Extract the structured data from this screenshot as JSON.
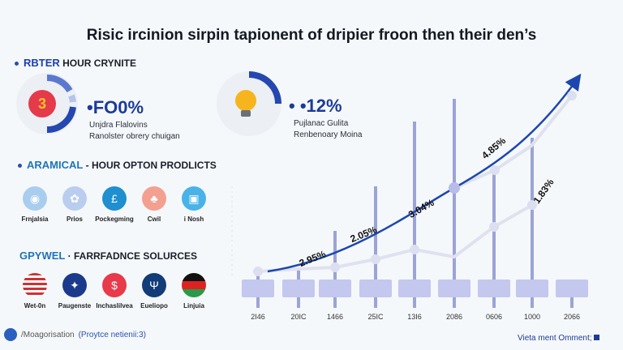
{
  "title": "Risic ircinion sirpin tapionent of dripier froon then their den’s",
  "section1": {
    "accent": "RBTER",
    "label": "HOUR CRYNITE"
  },
  "stat1": {
    "badge": "3",
    "value": "FO0%",
    "line1": "Unjdra Flalovins",
    "line2": "Ranolster obrery chuigan"
  },
  "stat2": {
    "value": "12%",
    "line1": "Pujlanac Gulita",
    "line2": "Renbenoary Moina"
  },
  "section2": {
    "accent": "ARAMICAL",
    "label": "HOUR OPTON PRODLICTS"
  },
  "products": [
    {
      "label": "Frnjalsia",
      "icon": "controller-icon",
      "color": "#a9cdef"
    },
    {
      "label": "Prios",
      "icon": "animal-icon",
      "color": "#b9cdef"
    },
    {
      "label": "Pockegming",
      "icon": "currency-icon",
      "color": "#1f8fd0"
    },
    {
      "label": "Cwil",
      "icon": "gift-icon",
      "color": "#f3a090"
    },
    {
      "label": "i Nosh",
      "icon": "device-icon",
      "color": "#49b3e8"
    }
  ],
  "section3": {
    "accent": "GPYWEL",
    "label": "FARRFADNCE SOLURCES"
  },
  "sources": [
    {
      "label": "Wet-0n",
      "icon": "us-flag-icon",
      "color": "#c33"
    },
    {
      "label": "Paugenste",
      "icon": "emblem-icon",
      "color": "#1c3a8c"
    },
    {
      "label": "Inchaslilvea",
      "icon": "coin-icon",
      "color": "#e83a4a"
    },
    {
      "label": "Eueliopo",
      "icon": "logo-icon",
      "color": "#123c78"
    },
    {
      "label": "Linjuia",
      "icon": "flag-icon",
      "color": "#d22"
    }
  ],
  "footer": {
    "text": "/Moagorisation",
    "link": "(Proytce netienii:3)",
    "right": "Vieta ment Omment;"
  },
  "chart_data": {
    "type": "line",
    "categories": [
      "2Ι46",
      "20ΙC",
      "1466",
      "25ΙC",
      "13Ι6",
      "2086",
      "0606",
      "1000",
      "2066"
    ],
    "data_labels": [
      "2.95%",
      "2.05%",
      "3.04%",
      "4.85%",
      "1.83%"
    ],
    "colors": {
      "trend": "#1d47b0",
      "secondary": "#d0d5e6",
      "bars": "#9da3d6"
    }
  }
}
